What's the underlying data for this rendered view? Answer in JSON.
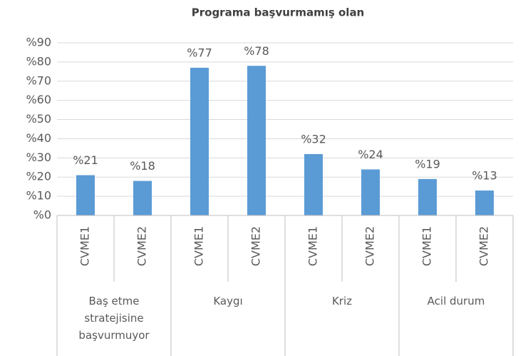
{
  "chart_data": {
    "type": "bar",
    "title": "Programa başvurmamış olan",
    "categories": [
      "CVME1",
      "CVME2",
      "CVME1",
      "CVME2",
      "CVME1",
      "CVME2",
      "CVME1",
      "CVME2"
    ],
    "groups": [
      "Baş etme stratejisine başvurmuyor",
      "Kaygı",
      "Kriz",
      "Acil durum"
    ],
    "values": [
      21,
      18,
      77,
      78,
      32,
      24,
      19,
      13
    ],
    "value_labels": [
      "%21",
      "%18",
      "%77",
      "%78",
      "%32",
      "%24",
      "%19",
      "%13"
    ],
    "color": "#5b9bd5",
    "ylim": [
      0,
      90
    ],
    "yticks": [
      {
        "value": 0,
        "label": "%0"
      },
      {
        "value": 10,
        "label": "%10"
      },
      {
        "value": 20,
        "label": "%20"
      },
      {
        "value": 30,
        "label": "%30"
      },
      {
        "value": 40,
        "label": "%40"
      },
      {
        "value": 50,
        "label": "%50"
      },
      {
        "value": 60,
        "label": "%60"
      },
      {
        "value": 70,
        "label": "%70"
      },
      {
        "value": 80,
        "label": "%80"
      },
      {
        "value": 90,
        "label": "%90"
      }
    ],
    "grid": true
  }
}
